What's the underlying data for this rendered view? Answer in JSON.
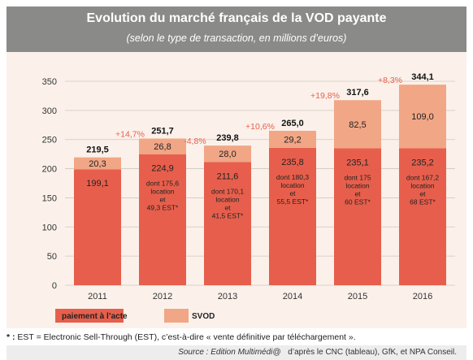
{
  "header": {
    "title": "Evolution du marché français de la VOD payante",
    "subtitle": "(selon le type de transaction, en millions d’euros)"
  },
  "chart_data": {
    "type": "bar",
    "stacked": true,
    "categories": [
      "2011",
      "2012",
      "2013",
      "2014",
      "2015",
      "2016"
    ],
    "series": [
      {
        "name": "paiement à l’acte",
        "values": [
          199.1,
          224.9,
          211.6,
          235.8,
          235.1,
          235.2
        ],
        "labels": [
          "199,1",
          "224,9",
          "211,6",
          "235,8",
          "235,1",
          "235,2"
        ],
        "color": "#e75f4c"
      },
      {
        "name": "SVOD",
        "values": [
          20.3,
          26.8,
          28.0,
          29.2,
          82.5,
          109.0
        ],
        "labels": [
          "20,3",
          "26,8",
          "28,0",
          "29,2",
          "82,5",
          "109,0"
        ],
        "color": "#f1a686"
      }
    ],
    "totals": [
      "219,5",
      "251,7",
      "239,8",
      "265,0",
      "317,6",
      "344,1"
    ],
    "growth": [
      "+14,7%",
      "-4,8%",
      "+10,6%",
      "+19,8%",
      "+8,3%"
    ],
    "growth_color": "#e75f4c",
    "details": [
      null,
      [
        "dont 175,6",
        "location",
        "et",
        "49,3 EST*"
      ],
      [
        "dont 170,1",
        "location",
        "et",
        "41,5 EST*"
      ],
      [
        "dont 180,3",
        "location",
        "et",
        "55,5 EST*"
      ],
      [
        "dont 175",
        "location",
        "et",
        "60 EST*"
      ],
      [
        "dont 167,2",
        "location",
        "et",
        "68 EST*"
      ]
    ],
    "yticks": [
      "0",
      "50",
      "100",
      "150",
      "200",
      "250",
      "300",
      "350"
    ],
    "ylim": [
      0,
      350
    ],
    "grid": true,
    "legend_position": "bottom-left"
  },
  "footnote": {
    "marker": "* :",
    "text": "EST = Electronic Sell-Through (EST), c’est-à-dire « vente définitive par téléchargement »."
  },
  "source": {
    "prefix": "Source : Edition Multimédi@",
    "rest": " d’après le CNC (tableau), GfK, et NPA Conseil."
  }
}
